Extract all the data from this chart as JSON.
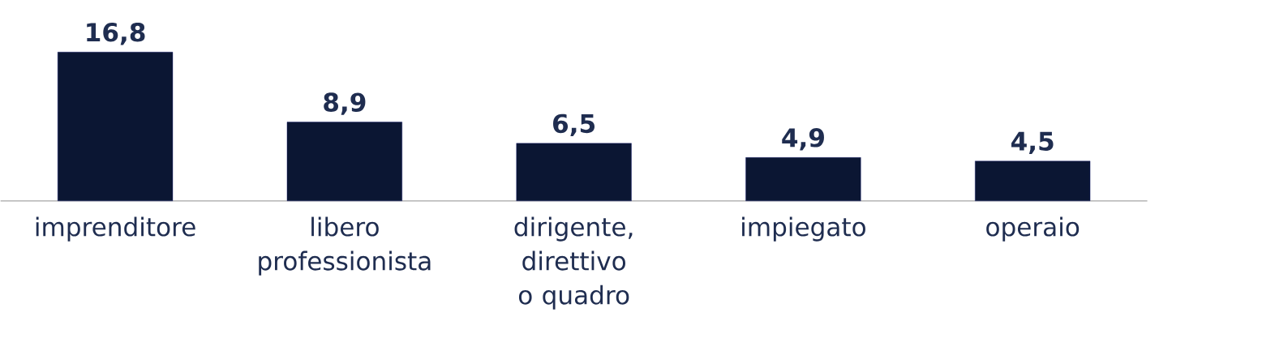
{
  "chart_data": {
    "type": "bar",
    "categories": [
      "imprenditore",
      "libero professionista",
      "dirigente, direttivo o quadro",
      "impiegato",
      "operaio"
    ],
    "values": [
      16.8,
      8.9,
      6.5,
      4.9,
      4.5
    ],
    "value_labels": [
      "16,8",
      "8,9",
      "6,5",
      "4,9",
      "4,5"
    ],
    "color": "#0b1633"
  }
}
